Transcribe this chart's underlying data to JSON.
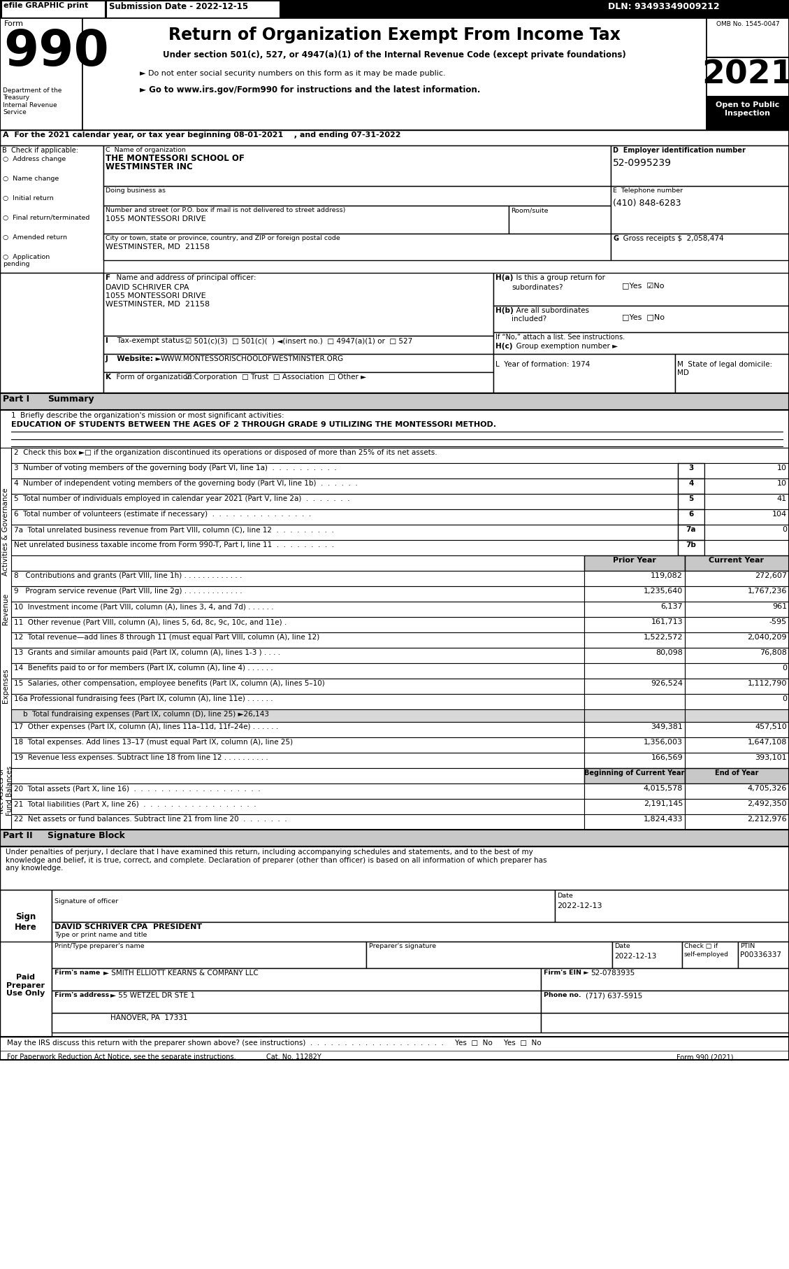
{
  "form_number": "990",
  "main_title": "Return of Organization Exempt From Income Tax",
  "subtitle1": "Under section 501(c), 527, or 4947(a)(1) of the Internal Revenue Code (except private foundations)",
  "subtitle2": "► Do not enter social security numbers on this form as it may be made public.",
  "subtitle3": "► Go to www.irs.gov/Form990 for instructions and the latest information.",
  "year": "2021",
  "omb": "OMB No. 1545-0047",
  "tax_year_line": "A  For the 2021 calendar year, or tax year beginning 08-01-2021    , and ending 07-31-2022",
  "checkboxes_b": [
    "Address change",
    "Name change",
    "Initial return",
    "Final return/terminated",
    "Amended return",
    "Application\npending"
  ],
  "org_name1": "THE MONTESSORI SCHOOL OF",
  "org_name2": "WESTMINSTER INC",
  "ein": "52-0995239",
  "address_value": "1055 MONTESSORI DRIVE",
  "city_value": "WESTMINSTER, MD  21158",
  "phone": "(410) 848-6283",
  "gross_receipts": "2,058,474",
  "officer_name": "DAVID SCHRIVER CPA",
  "officer_address": "1055 MONTESSORI DRIVE",
  "officer_city": "WESTMINSTER, MD  21158",
  "website": "WWW.MONTESSORISCHOOLOFWESTMINSTER.ORG",
  "line1_value": "EDUCATION OF STUDENTS BETWEEN THE AGES OF 2 THROUGH GRADE 9 UTILIZING THE MONTESSORI METHOD.",
  "line2": "2  Check this box ►□ if the organization discontinued its operations or disposed of more than 25% of its net assets.",
  "line3_txt": "3  Number of voting members of the governing body (Part VI, line 1a)  .  .  .  .  .  .  .  .  .  .",
  "line3_num": "3",
  "line3_val": "10",
  "line4_txt": "4  Number of independent voting members of the governing body (Part VI, line 1b)  .  .  .  .  .  .",
  "line4_num": "4",
  "line4_val": "10",
  "line5_txt": "5  Total number of individuals employed in calendar year 2021 (Part V, line 2a)  .  .  .  .  .  .  .",
  "line5_num": "5",
  "line5_val": "41",
  "line6_txt": "6  Total number of volunteers (estimate if necessary)  .  .  .  .  .  .  .  .  .  .  .  .  .  .  .",
  "line6_num": "6",
  "line6_val": "104",
  "line7a_txt": "7a  Total unrelated business revenue from Part VIII, column (C), line 12  .  .  .  .  .  .  .  .  .",
  "line7a_num": "7a",
  "line7a_val": "0",
  "line7b_txt": "Net unrelated business taxable income from Form 990-T, Part I, line 11  .  .  .  .  .  .  .  .  .",
  "line7b_num": "7b",
  "line7b_val": "",
  "line8_txt": "8   Contributions and grants (Part VIII, line 1h) . . . . . . . . . . . . .",
  "line8_prior": "119,082",
  "line8_cur": "272,607",
  "line9_txt": "9   Program service revenue (Part VIII, line 2g) . . . . . . . . . . . . .",
  "line9_prior": "1,235,640",
  "line9_cur": "1,767,236",
  "line10_txt": "10  Investment income (Part VIII, column (A), lines 3, 4, and 7d) . . . . . .",
  "line10_prior": "6,137",
  "line10_cur": "961",
  "line11_txt": "11  Other revenue (Part VIII, column (A), lines 5, 6d, 8c, 9c, 10c, and 11e) .",
  "line11_prior": "161,713",
  "line11_cur": "-595",
  "line12_txt": "12  Total revenue—add lines 8 through 11 (must equal Part VIII, column (A), line 12)",
  "line12_prior": "1,522,572",
  "line12_cur": "2,040,209",
  "line13_txt": "13  Grants and similar amounts paid (Part IX, column (A), lines 1-3 ) . . . .",
  "line13_prior": "80,098",
  "line13_cur": "76,808",
  "line14_txt": "14  Benefits paid to or for members (Part IX, column (A), line 4) . . . . . .",
  "line14_prior": "",
  "line14_cur": "0",
  "line15_txt": "15  Salaries, other compensation, employee benefits (Part IX, column (A), lines 5–10)",
  "line15_prior": "926,524",
  "line15_cur": "1,112,790",
  "line16a_txt": "16a Professional fundraising fees (Part IX, column (A), line 11e) . . . . . .",
  "line16a_prior": "",
  "line16a_cur": "0",
  "line16b_txt": "    b  Total fundraising expenses (Part IX, column (D), line 25) ►26,143",
  "line17_txt": "17  Other expenses (Part IX, column (A), lines 11a–11d, 11f–24e) . . . . . .",
  "line17_prior": "349,381",
  "line17_cur": "457,510",
  "line18_txt": "18  Total expenses. Add lines 13–17 (must equal Part IX, column (A), line 25)",
  "line18_prior": "1,356,003",
  "line18_cur": "1,647,108",
  "line19_txt": "19  Revenue less expenses. Subtract line 18 from line 12 . . . . . . . . . .",
  "line19_prior": "166,569",
  "line19_cur": "393,101",
  "line20_txt": "20  Total assets (Part X, line 16)  .  .  .  .  .  .  .  .  .  .  .  .  .  .  .  .  .  .  .",
  "line20_beg": "4,015,578",
  "line20_end": "4,705,326",
  "line21_txt": "21  Total liabilities (Part X, line 26)  .  .  .  .  .  .  .  .  .  .  .  .  .  .  .  .  .",
  "line21_beg": "2,191,145",
  "line21_end": "2,492,350",
  "line22_txt": "22  Net assets or fund balances. Subtract line 21 from line 20  .  .  .  .  .  .  .",
  "line22_beg": "1,824,433",
  "line22_end": "2,212,976",
  "sig_text": "Under penalties of perjury, I declare that I have examined this return, including accompanying schedules and statements, and to the best of my\nknowledge and belief, it is true, correct, and complete. Declaration of preparer (other than officer) is based on all information of which preparer has\nany knowledge.",
  "sig_date": "2022-12-13",
  "sig_name": "DAVID SCHRIVER CPA  PRESIDENT",
  "prep_date": "2022-12-13",
  "prep_ptin": "P00336337",
  "firm_name": "► SMITH ELLIOTT KEARNS & COMPANY LLC",
  "firm_ein": "52-0783935",
  "firm_address": "► 55 WETZEL DR STE 1",
  "firm_city": "HANOVER, PA  17331",
  "firm_phone": "(717) 637-5915",
  "footer_irs": "May the IRS discuss this return with the preparer shown above? (see instructions)  .  .  .  .  .  .  .  .  .  .  .  .  .  .  .  .  .  .  .  .     Yes  □  No",
  "footer_pra": "For Paperwork Reduction Act Notice, see the separate instructions.",
  "footer_cat": "Cat. No. 11282Y",
  "footer_form": "Form 990 (2021)"
}
